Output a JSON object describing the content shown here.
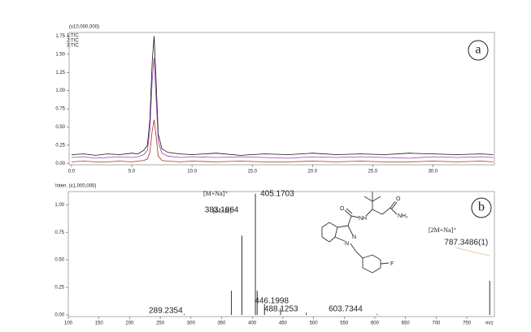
{
  "chart_data": [
    {
      "type": "line",
      "panel_label": "a",
      "axis_note": "(x10,000,000)",
      "x": [
        0,
        1,
        2,
        3,
        4,
        5,
        5.5,
        6,
        6.3,
        6.5,
        6.7,
        6.85,
        7,
        7.2,
        7.5,
        8,
        9,
        10,
        12,
        14,
        16,
        18,
        20,
        22,
        24,
        26,
        28,
        30,
        32,
        34,
        35
      ],
      "xlim": [
        -0.2,
        35.1
      ],
      "xticks": [
        {
          "value": 0,
          "label": "0.0"
        },
        {
          "value": 5,
          "label": "5.0"
        },
        {
          "value": 10,
          "label": "10.0"
        },
        {
          "value": 15,
          "label": "15.0"
        },
        {
          "value": 20,
          "label": "20.0"
        },
        {
          "value": 25,
          "label": "25.0"
        },
        {
          "value": 30,
          "label": "30.0"
        }
      ],
      "ylim": [
        -0.02,
        1.8
      ],
      "yticks": [
        {
          "value": 0,
          "label": "0.00"
        },
        {
          "value": 0.25,
          "label": "0.25"
        },
        {
          "value": 0.5,
          "label": "0.50"
        },
        {
          "value": 0.75,
          "label": "0.75"
        },
        {
          "value": 1,
          "label": "1.00"
        },
        {
          "value": 1.25,
          "label": "1.25"
        },
        {
          "value": 1.5,
          "label": "1.50"
        },
        {
          "value": 1.75,
          "label": "1.75"
        }
      ],
      "series": [
        {
          "name": "1:TIC",
          "color": "#111111",
          "values": [
            0.12,
            0.13,
            0.11,
            0.13,
            0.12,
            0.14,
            0.13,
            0.18,
            0.25,
            0.6,
            1.4,
            1.75,
            1.2,
            0.4,
            0.2,
            0.15,
            0.13,
            0.12,
            0.14,
            0.11,
            0.13,
            0.12,
            0.14,
            0.12,
            0.13,
            0.12,
            0.14,
            0.13,
            0.12,
            0.13,
            0.12
          ]
        },
        {
          "name": "2:TIC",
          "color": "#9b3fb5",
          "values": [
            0.08,
            0.09,
            0.07,
            0.08,
            0.09,
            0.08,
            0.09,
            0.12,
            0.18,
            0.45,
            1.15,
            1.45,
            0.95,
            0.3,
            0.14,
            0.1,
            0.08,
            0.09,
            0.08,
            0.09,
            0.08,
            0.07,
            0.09,
            0.08,
            0.09,
            0.08,
            0.07,
            0.09,
            0.08,
            0.09,
            0.08
          ]
        },
        {
          "name": "3:TIC",
          "color": "#b0301e",
          "values": [
            0.02,
            0.03,
            0.02,
            0.02,
            0.03,
            0.02,
            0.03,
            0.04,
            0.06,
            0.15,
            0.45,
            0.6,
            0.4,
            0.1,
            0.04,
            0.03,
            0.02,
            0.03,
            0.02,
            0.03,
            0.02,
            0.02,
            0.03,
            0.02,
            0.03,
            0.02,
            0.02,
            0.03,
            0.02,
            0.03,
            0.02
          ]
        }
      ]
    },
    {
      "type": "stem",
      "panel_label": "b",
      "axis_note": "Inten. (x1,000,000)",
      "x_label": "m/z",
      "x": [
        289.2354,
        366,
        383.1864,
        405.1703,
        408,
        420,
        446.1998,
        488.1253,
        603.7344,
        787.3486
      ],
      "values": [
        0.01,
        0.22,
        0.72,
        1.1,
        0.22,
        0.1,
        0.06,
        0.02,
        0.01,
        0.31
      ],
      "x_labels": [
        "289.2354",
        null,
        "383.1864",
        "405.1703",
        null,
        null,
        "446.1998",
        "488.1253",
        "603.7344",
        "787.3486(1)"
      ],
      "color": "#333333",
      "label_color": "#2e4ea6",
      "xlim": [
        100,
        795
      ],
      "xticks": [
        100,
        150,
        200,
        250,
        300,
        350,
        400,
        450,
        500,
        550,
        600,
        650,
        700,
        750
      ],
      "ylim": [
        -0.015,
        1.12
      ],
      "yticks": [
        {
          "value": 0,
          "label": "0.00"
        },
        {
          "value": 0.25,
          "label": "0.25"
        },
        {
          "value": 0.5,
          "label": "0.50"
        },
        {
          "value": 0.75,
          "label": "0.75"
        },
        {
          "value": 1,
          "label": "1.00"
        }
      ],
      "annotations": [
        "[M+Na]⁺",
        "[M+H]⁺",
        "[2M+Na]⁺"
      ],
      "structure_labels": [
        "O",
        "NH",
        "O",
        "NH₂",
        "N",
        "N",
        "F"
      ]
    }
  ]
}
